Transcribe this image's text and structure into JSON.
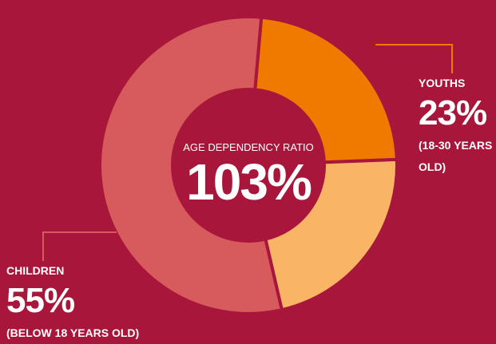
{
  "chart_data": {
    "type": "donut",
    "title": "AGE DEPENDENCY RATIO",
    "center_label": "103%",
    "categories": [
      "YOUTHS",
      null,
      "CHILDREN"
    ],
    "values": [
      23,
      22,
      55
    ],
    "value_labels": [
      "23%",
      null,
      "55%"
    ],
    "descriptions": [
      "(18-30 YEARS OLD)",
      null,
      "(BELOW 18 YEARS OLD)"
    ],
    "colors": [
      "#f07a00",
      "#f9b466",
      "#d75a5c"
    ]
  }
}
